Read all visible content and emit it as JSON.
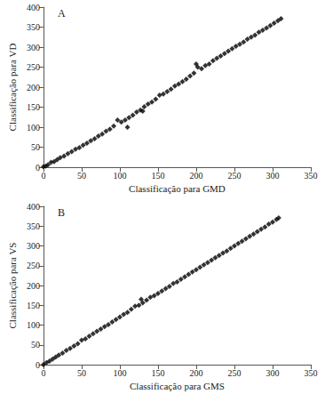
{
  "chart_data": [
    {
      "type": "scatter",
      "title": "A",
      "xlabel": "Classificação para GMD",
      "ylabel": "Classificação para VD",
      "x": [
        0,
        3,
        6,
        10,
        14,
        18,
        22,
        27,
        32,
        37,
        42,
        47,
        52,
        57,
        62,
        67,
        72,
        77,
        82,
        87,
        92,
        97,
        102,
        107,
        110,
        112,
        117,
        122,
        127,
        130,
        132,
        137,
        142,
        147,
        152,
        157,
        162,
        167,
        172,
        177,
        182,
        187,
        192,
        197,
        200,
        202,
        207,
        212,
        217,
        222,
        227,
        232,
        237,
        242,
        247,
        252,
        257,
        262,
        267,
        272,
        277,
        282,
        287,
        292,
        297,
        302,
        307,
        311
      ],
      "y": [
        1,
        3,
        6,
        12,
        14,
        19,
        24,
        28,
        34,
        39,
        45,
        49,
        55,
        60,
        66,
        71,
        78,
        83,
        90,
        95,
        103,
        118,
        113,
        118,
        100,
        124,
        130,
        138,
        143,
        140,
        151,
        158,
        163,
        170,
        180,
        183,
        189,
        195,
        203,
        208,
        214,
        220,
        228,
        235,
        258,
        250,
        246,
        254,
        258,
        266,
        272,
        278,
        284,
        290,
        296,
        302,
        307,
        313,
        320,
        325,
        330,
        337,
        342,
        348,
        354,
        360,
        366,
        371
      ],
      "xlim": [
        0,
        350
      ],
      "ylim": [
        0,
        400
      ],
      "xticks": [
        0,
        50,
        100,
        150,
        200,
        250,
        300,
        350
      ],
      "yticks": [
        0,
        50,
        100,
        150,
        200,
        250,
        300,
        350,
        400
      ],
      "color": "#000000",
      "marker": "diamond",
      "grid": false
    },
    {
      "type": "scatter",
      "title": "B",
      "xlabel": "Classificação para GMS",
      "ylabel": "Classificação para VS",
      "x": [
        0,
        4,
        8,
        12,
        16,
        20,
        25,
        30,
        35,
        40,
        45,
        50,
        55,
        60,
        65,
        70,
        75,
        80,
        85,
        90,
        95,
        100,
        105,
        110,
        115,
        120,
        125,
        128,
        130,
        135,
        140,
        145,
        150,
        155,
        160,
        165,
        170,
        175,
        180,
        185,
        190,
        195,
        200,
        205,
        210,
        215,
        220,
        225,
        230,
        235,
        240,
        245,
        250,
        255,
        260,
        265,
        270,
        275,
        280,
        285,
        290,
        295,
        300,
        305,
        308
      ],
      "y": [
        0,
        5,
        9,
        14,
        19,
        24,
        29,
        36,
        41,
        47,
        53,
        62,
        65,
        72,
        78,
        84,
        90,
        96,
        101,
        108,
        114,
        120,
        127,
        132,
        140,
        148,
        150,
        165,
        156,
        163,
        170,
        174,
        180,
        186,
        192,
        198,
        205,
        209,
        216,
        222,
        228,
        234,
        240,
        246,
        252,
        258,
        264,
        270,
        276,
        282,
        287,
        294,
        300,
        306,
        312,
        318,
        324,
        330,
        336,
        342,
        348,
        355,
        360,
        367,
        371
      ],
      "xlim": [
        0,
        350
      ],
      "ylim": [
        0,
        400
      ],
      "xticks": [
        0,
        50,
        100,
        150,
        200,
        250,
        300,
        350
      ],
      "yticks": [
        0,
        50,
        100,
        150,
        200,
        250,
        300,
        350,
        400
      ],
      "color": "#000000",
      "marker": "diamond",
      "grid": false
    }
  ]
}
